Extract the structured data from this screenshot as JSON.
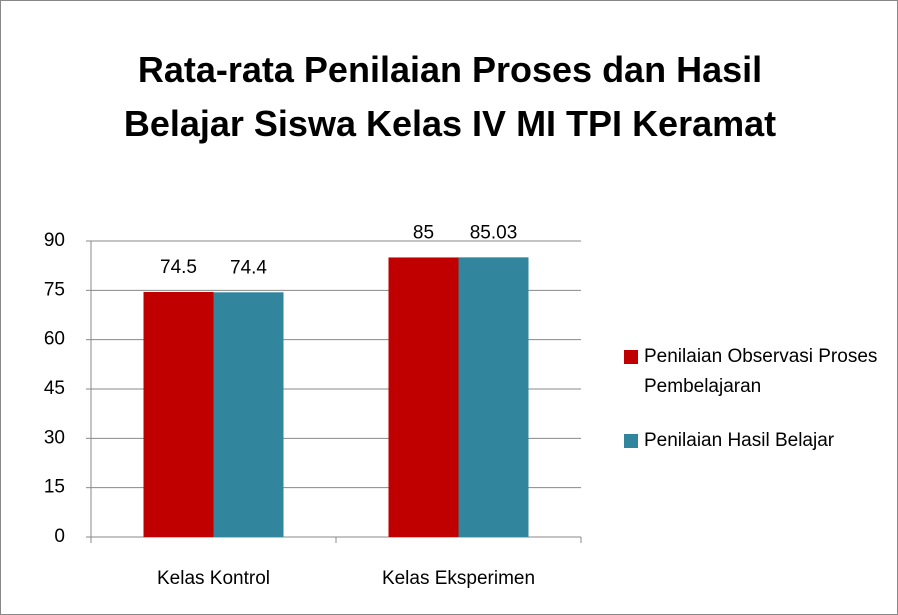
{
  "chart_data": {
    "type": "bar",
    "title": "Rata-rata Penilaian Proses dan Hasil Belajar Siswa Kelas IV MI TPI Keramat",
    "categories": [
      "Kelas Kontrol",
      "Kelas Eksperimen"
    ],
    "series": [
      {
        "name": "Penilaian Observasi Proses Pembelajaran",
        "color": "#c00000",
        "values": [
          74.5,
          85
        ]
      },
      {
        "name": "Penilaian Hasil Belajar",
        "color": "#31859c",
        "values": [
          74.4,
          85.03
        ]
      }
    ],
    "ylim": [
      0,
      90
    ],
    "yticks": [
      0,
      15,
      30,
      45,
      60,
      75,
      90
    ],
    "grid": true,
    "legend": "right"
  }
}
